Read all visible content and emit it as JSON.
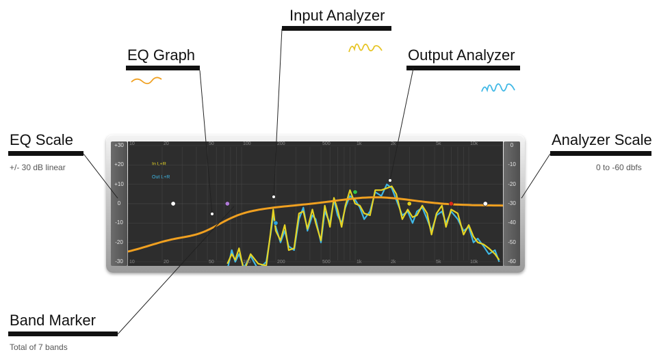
{
  "callouts": {
    "eq_scale": {
      "title": "EQ Scale",
      "subtitle": "+/- 30 dB linear"
    },
    "eq_graph": {
      "title": "EQ Graph"
    },
    "input_analyzer": {
      "title": "Input Analyzer"
    },
    "output_analyzer": {
      "title": "Output Analyzer"
    },
    "analyzer_scale": {
      "title": "Analyzer Scale",
      "subtitle": "0 to -60 dbfs"
    },
    "band_marker": {
      "title": "Band Marker",
      "subtitle": "Total of 7 bands"
    }
  },
  "eq": {
    "left_scale": [
      "+30",
      "+20",
      "+10",
      "0",
      "-10",
      "-20",
      "-30"
    ],
    "right_scale": [
      "0",
      "-10",
      "-20",
      "-30",
      "-40",
      "-50",
      "-60"
    ],
    "freq_top": [
      "10",
      "20",
      "50",
      "100",
      "200",
      "500",
      "1k",
      "2k",
      "5k",
      "10k"
    ],
    "freq_bottom": [
      "10",
      "20",
      "50",
      "100",
      "200",
      "500",
      "1k",
      "2k",
      "5k",
      "10k"
    ],
    "legend_in": "In L+R",
    "legend_out": "Out L+R",
    "band_markers": [
      {
        "freq": 25,
        "gain": 0,
        "color": "#ffffff"
      },
      {
        "freq": 75,
        "gain": 0,
        "color": "#b07ad8"
      },
      {
        "freq": 200,
        "gain": -10,
        "color": "#2fa6e0"
      },
      {
        "freq": 1000,
        "gain": 6,
        "color": "#35c24a"
      },
      {
        "freq": 3000,
        "gain": 0,
        "color": "#e0d020"
      },
      {
        "freq": 7000,
        "gain": 0,
        "color": "#e02a1a"
      },
      {
        "freq": 14000,
        "gain": 0,
        "color": "#ffffff"
      }
    ]
  },
  "colors": {
    "eq_curve": "#f0a020",
    "input_analyzer": "#e6d424",
    "output_analyzer": "#3fb8e6",
    "plot_bg": "#2d2d2d"
  }
}
